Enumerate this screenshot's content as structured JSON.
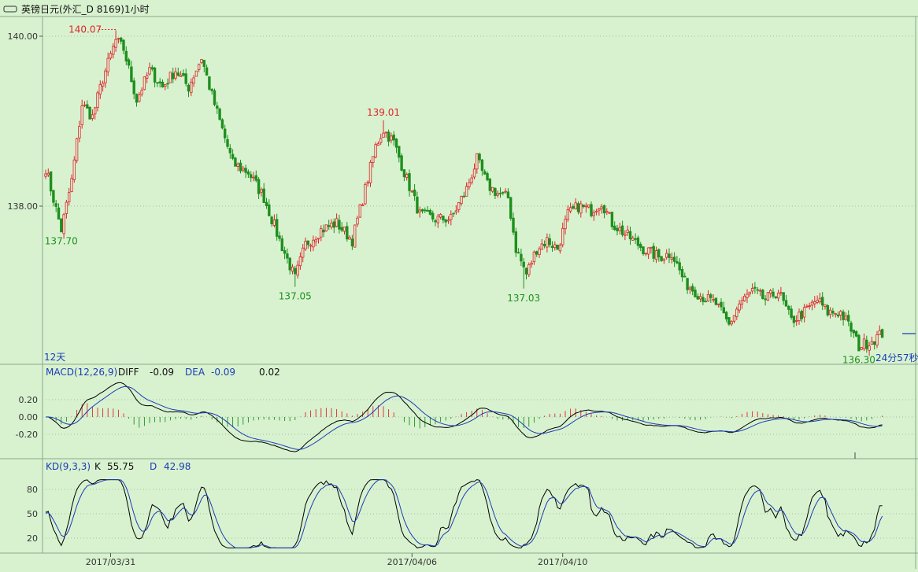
{
  "window": {
    "title": "英镑日元(外汇_D 8169)1小时",
    "period_label": "12天",
    "countdown": "24分57秒"
  },
  "colors": {
    "background": "#d8f2d0",
    "up": "#e0242a",
    "down": "#1e8f1e",
    "axis_text": "#333333",
    "macd_diff": "#000000",
    "macd_dea": "#1c3bb8",
    "kd_k": "#000000",
    "kd_d": "#1c3bb8",
    "grid": "#9fbf9f"
  },
  "chart_data": [
    {
      "type": "candlestick",
      "title": "英镑日元(外汇_D 8169)1小时",
      "ylim": [
        136.25,
        140.1
      ],
      "y_ticks": [
        "140.00",
        "138.00"
      ],
      "y_tick_values": [
        140.0,
        138.0
      ],
      "x_ticks": [
        {
          "label": "2017/03/31",
          "index": 25
        },
        {
          "label": "2017/04/06",
          "index": 141
        },
        {
          "label": "2017/04/10",
          "index": 199
        }
      ],
      "annotations": [
        {
          "text": "140.07",
          "value": 140.07,
          "index": 27,
          "kind": "high"
        },
        {
          "text": "137.70",
          "value": 137.7,
          "index": 6,
          "kind": "low"
        },
        {
          "text": "137.05",
          "value": 137.05,
          "index": 96,
          "kind": "low"
        },
        {
          "text": "139.01",
          "value": 139.01,
          "index": 130,
          "kind": "high"
        },
        {
          "text": "137.03",
          "value": 137.03,
          "index": 184,
          "kind": "low"
        },
        {
          "text": "136.30",
          "value": 136.3,
          "index": 313,
          "kind": "low"
        }
      ],
      "waypoints": [
        [
          0,
          138.45
        ],
        [
          6,
          137.72
        ],
        [
          10,
          138.3
        ],
        [
          14,
          139.2
        ],
        [
          18,
          139.05
        ],
        [
          22,
          139.5
        ],
        [
          27,
          139.95
        ],
        [
          30,
          139.85
        ],
        [
          35,
          139.25
        ],
        [
          40,
          139.6
        ],
        [
          45,
          139.4
        ],
        [
          50,
          139.6
        ],
        [
          55,
          139.4
        ],
        [
          60,
          139.75
        ],
        [
          64,
          139.3
        ],
        [
          68,
          138.9
        ],
        [
          72,
          138.5
        ],
        [
          78,
          138.4
        ],
        [
          84,
          138.1
        ],
        [
          90,
          137.6
        ],
        [
          96,
          137.15
        ],
        [
          100,
          137.55
        ],
        [
          106,
          137.72
        ],
        [
          112,
          137.8
        ],
        [
          118,
          137.6
        ],
        [
          123,
          138.2
        ],
        [
          127,
          138.7
        ],
        [
          130,
          138.9
        ],
        [
          134,
          138.75
        ],
        [
          138,
          138.4
        ],
        [
          144,
          137.9
        ],
        [
          150,
          137.85
        ],
        [
          156,
          137.85
        ],
        [
          162,
          138.2
        ],
        [
          166,
          138.55
        ],
        [
          170,
          138.25
        ],
        [
          174,
          138.15
        ],
        [
          178,
          138.1
        ],
        [
          181,
          137.5
        ],
        [
          185,
          137.2
        ],
        [
          189,
          137.5
        ],
        [
          193,
          137.6
        ],
        [
          197,
          137.5
        ],
        [
          201,
          137.9
        ],
        [
          205,
          138.0
        ],
        [
          210,
          137.95
        ],
        [
          214,
          138.05
        ],
        [
          218,
          137.8
        ],
        [
          224,
          137.65
        ],
        [
          230,
          137.5
        ],
        [
          236,
          137.4
        ],
        [
          241,
          137.45
        ],
        [
          246,
          137.1
        ],
        [
          252,
          136.95
        ],
        [
          258,
          136.85
        ],
        [
          263,
          136.6
        ],
        [
          267,
          136.85
        ],
        [
          272,
          137.0
        ],
        [
          277,
          136.9
        ],
        [
          282,
          137.0
        ],
        [
          287,
          136.65
        ],
        [
          292,
          136.75
        ],
        [
          297,
          136.9
        ],
        [
          301,
          136.75
        ],
        [
          306,
          136.75
        ],
        [
          310,
          136.55
        ],
        [
          313,
          136.35
        ],
        [
          318,
          136.42
        ],
        [
          322,
          136.5
        ]
      ]
    },
    {
      "type": "macd",
      "label": "MACD(12,26,9)",
      "params": [
        12,
        26,
        9
      ],
      "diff_label": "DIFF",
      "diff": -0.09,
      "diff_text": "-0.09",
      "dea_label": "DEA",
      "dea": -0.09,
      "dea_text": "-0.09",
      "macd_text": "0.02",
      "ylim": [
        -0.46,
        0.42
      ],
      "y_ticks": [
        "0.20",
        "0.00",
        "-0.20"
      ],
      "y_tick_values": [
        0.2,
        0.0,
        -0.2
      ]
    },
    {
      "type": "kd",
      "label": "KD(9,3,3)",
      "params": [
        9,
        3,
        3
      ],
      "k_label": "K",
      "k": 55.75,
      "k_text": "55.75",
      "d_label": "D",
      "d": 42.98,
      "d_text": "42.98",
      "ylim": [
        0,
        100
      ],
      "y_ticks": [
        "80",
        "50",
        "20"
      ],
      "y_tick_values": [
        80,
        50,
        20
      ]
    }
  ]
}
